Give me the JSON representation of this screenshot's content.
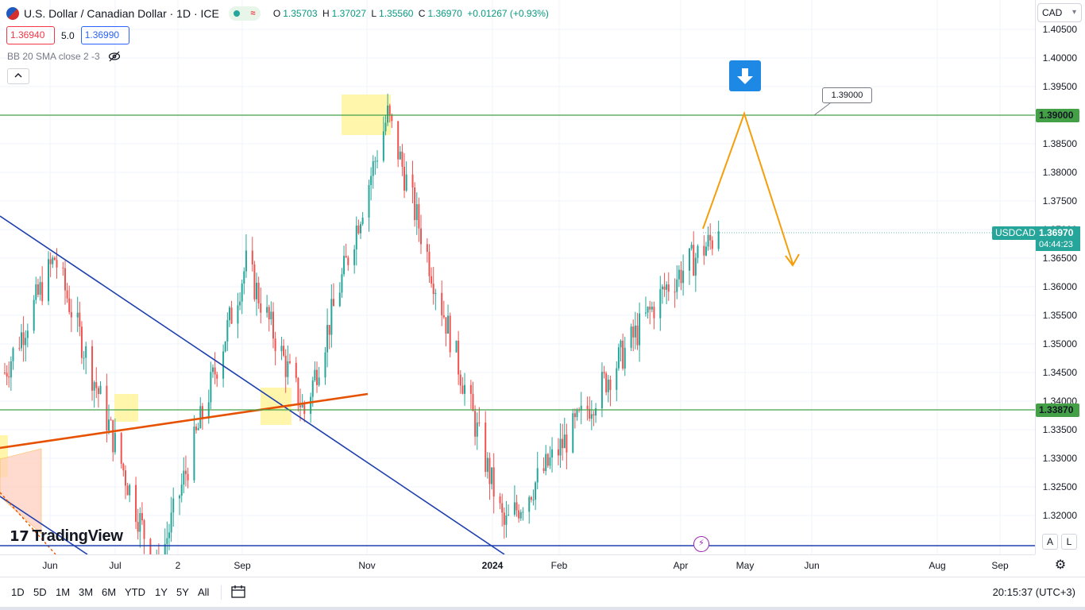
{
  "header": {
    "symbol_title": "U.S. Dollar / Canadian Dollar · 1D · ICE",
    "live_icon": "wave-icon",
    "ohlc": {
      "o_label": "O",
      "o": "1.35703",
      "h_label": "H",
      "h": "1.37027",
      "l_label": "L",
      "l": "1.35560",
      "c_label": "C",
      "c": "1.36970",
      "change": "+0.01267 (+0.93%)"
    },
    "sell_price": "1.36940",
    "spread": "5.0",
    "buy_price": "1.36990",
    "indicator": "BB 20 SMA close 2 -3",
    "collapse_icon": "chevron-up-icon"
  },
  "currency": "CAD",
  "brand": "TradingView",
  "price_axis": {
    "ticks": [
      "1.40500",
      "1.40000",
      "1.39500",
      "1.39000",
      "1.38500",
      "1.38000",
      "1.37500",
      "1.37000",
      "1.36500",
      "1.36000",
      "1.35500",
      "1.35000",
      "1.34500",
      "1.34000",
      "1.33500",
      "1.33000",
      "1.32500",
      "1.32000"
    ],
    "resistance_label": "1.39000",
    "support_label": "1.33870",
    "current_label": "1.36970",
    "symbol_tag": "USDCAD",
    "timer": "04:44:23"
  },
  "callout_label": "1.39000",
  "time_axis": {
    "ticks": [
      {
        "label": "Jun",
        "bold": false
      },
      {
        "label": "Jul",
        "bold": false
      },
      {
        "label": "2",
        "bold": false
      },
      {
        "label": "Sep",
        "bold": false
      },
      {
        "label": "Nov",
        "bold": false
      },
      {
        "label": "2024",
        "bold": true
      },
      {
        "label": "Feb",
        "bold": false
      },
      {
        "label": "Apr",
        "bold": false
      },
      {
        "label": "May",
        "bold": false
      },
      {
        "label": "Jun",
        "bold": false
      },
      {
        "label": "Aug",
        "bold": false
      },
      {
        "label": "Sep",
        "bold": false
      }
    ]
  },
  "toolbar": {
    "ranges": [
      "1D",
      "5D",
      "1M",
      "3M",
      "6M",
      "YTD",
      "1Y",
      "5Y",
      "All"
    ],
    "clock": "20:15:37 (UTC+3)"
  },
  "buttons": {
    "auto": "A",
    "log": "L"
  },
  "colors": {
    "up": "#26a69a",
    "down": "#ef5350",
    "level": "#43a047",
    "trendline_blue": "#1e40af",
    "trendline_orange": "#e65100",
    "forecast": "#f59e0b",
    "highlight": "#fff59d"
  },
  "chart_data": {
    "type": "candlestick",
    "symbol": "USDCAD",
    "timeframe": "1D",
    "ylim": [
      1.3175,
      1.4075
    ],
    "horizontal_levels": [
      1.39,
      1.3387
    ],
    "last_close": 1.3697,
    "forecast_path": [
      {
        "date": "2024-04-09",
        "price": 1.3697
      },
      {
        "date": "2024-05-01",
        "price": 1.3907
      },
      {
        "date": "2024-05-20",
        "price": 1.3635
      }
    ],
    "approx_swings": [
      {
        "date": "2023-05-25",
        "price": 1.365
      },
      {
        "date": "2023-07-13",
        "price": 1.31
      },
      {
        "date": "2023-08-25",
        "price": 1.364
      },
      {
        "date": "2023-09-22",
        "price": 1.338
      },
      {
        "date": "2023-11-01",
        "price": 1.39
      },
      {
        "date": "2023-12-27",
        "price": 1.318
      },
      {
        "date": "2024-01-31",
        "price": 1.336
      },
      {
        "date": "2024-03-14",
        "price": 1.36
      },
      {
        "date": "2024-04-09",
        "price": 1.3697
      }
    ]
  }
}
